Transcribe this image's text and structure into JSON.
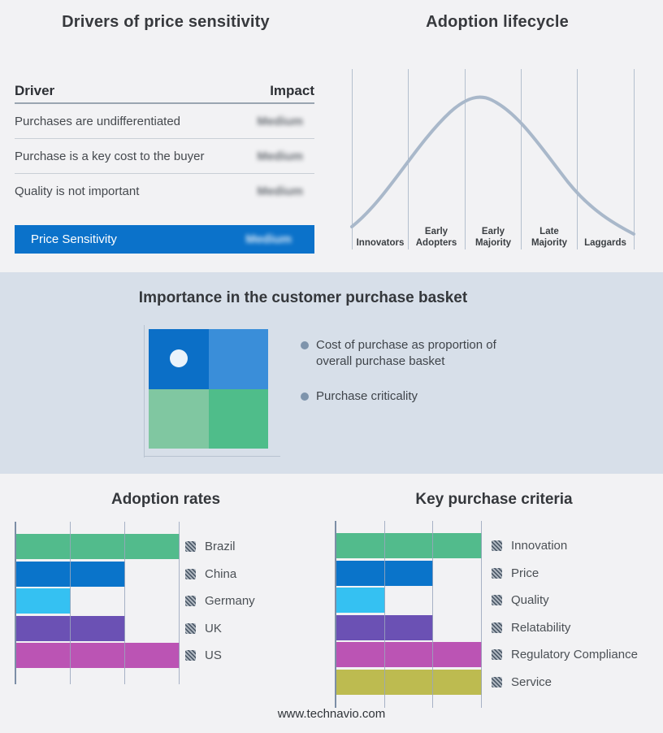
{
  "page": {
    "background": "#f2f2f4",
    "band_background": "#d7dfe9",
    "accent_blue": "#0b72ca"
  },
  "drivers_panel": {
    "title": "Drivers of price sensitivity",
    "table": {
      "col_driver": "Driver",
      "col_impact": "Impact",
      "rows": [
        {
          "driver": "Purchases are undifferentiated",
          "impact": "Medium"
        },
        {
          "driver": "Purchase is a key cost to the buyer",
          "impact": "Medium"
        },
        {
          "driver": "Quality is not important",
          "impact": "Medium"
        }
      ],
      "highlight_row": {
        "driver": "Price Sensitivity",
        "impact": "Medium",
        "background": "#0b72ca"
      },
      "impact_values_blurred": true
    }
  },
  "lifecycle_panel": {
    "title": "Adoption lifecycle",
    "stages": [
      "Innovators",
      "Early Adopters",
      "Early Majority",
      "Late Majority",
      "Laggards"
    ],
    "curve_color": "#a9b8ca",
    "gridline_color": "#b4bfce",
    "curve_shape": "bell curve peaking at Early Majority"
  },
  "basket_band": {
    "title": "Importance in the customer purchase basket",
    "bullets": [
      "Cost of purchase as proportion of overall purchase basket",
      "Purchase criticality"
    ],
    "quadrant_colors": {
      "top_left": "#0b6fc7",
      "top_right": "#3a8ed9",
      "bottom_left": "#80c7a1",
      "bottom_right": "#4fbd8a"
    },
    "marker_dot_color": "#eaf3fb",
    "marker_dot_quadrant": "top_left"
  },
  "chart_data": [
    {
      "type": "bar",
      "orientation": "horizontal",
      "title": "Adoption rates",
      "categories": [
        "Brazil",
        "China",
        "Germany",
        "UK",
        "US"
      ],
      "values": [
        3,
        2,
        1,
        2,
        3
      ],
      "xlim": [
        0,
        3.15
      ],
      "gridlines_x": [
        1,
        2,
        3
      ],
      "grid": true,
      "axis_labels_shown": false,
      "value_units": "relative (unlabeled gridline units)",
      "bar_colors": [
        "#52bb8c",
        "#0a74ca",
        "#35c1f2",
        "#6b51b4",
        "#bb54b4"
      ],
      "legend_position": "right",
      "xlabel": "",
      "ylabel": ""
    },
    {
      "type": "bar",
      "orientation": "horizontal",
      "title": "Key purchase criteria",
      "categories": [
        "Innovation",
        "Price",
        "Quality",
        "Relatability",
        "Regulatory Compliance",
        "Service"
      ],
      "values": [
        3,
        2,
        1,
        2,
        3,
        3
      ],
      "xlim": [
        0,
        3.15
      ],
      "gridlines_x": [
        1,
        2,
        3
      ],
      "grid": true,
      "axis_labels_shown": false,
      "value_units": "relative (unlabeled gridline units)",
      "bar_colors": [
        "#52bb8c",
        "#0a74ca",
        "#35c1f2",
        "#6b51b4",
        "#bb54b4",
        "#bdbb50"
      ],
      "legend_position": "right",
      "xlabel": "",
      "ylabel": ""
    }
  ],
  "footer": {
    "text": "www.technavio.com"
  }
}
